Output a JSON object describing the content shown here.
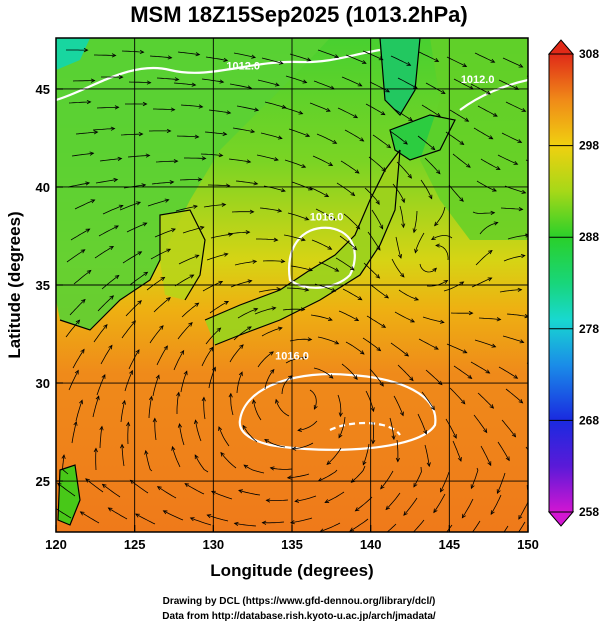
{
  "chart_data": {
    "type": "heatmap",
    "title": "MSM 18Z15Sep2025 (1013.2hPa)",
    "xlabel": "Longitude (degrees)",
    "ylabel": "Latitude  (degrees)",
    "xlim": [
      120,
      150
    ],
    "ylim": [
      22.4,
      47.6
    ],
    "x_ticks": [
      120,
      125,
      130,
      135,
      140,
      145,
      150
    ],
    "y_ticks": [
      25,
      30,
      35,
      40,
      45
    ],
    "grid": true,
    "grid_step_deg": 5,
    "colorbar": {
      "min": 258,
      "max": 308,
      "ticks": [
        258,
        268,
        278,
        288,
        298,
        308
      ],
      "placement": "right"
    },
    "contours": [
      {
        "label": "1012.0",
        "lon": 131.9,
        "lat": 46.0
      },
      {
        "label": "1016.0",
        "lon": 137.2,
        "lat": 38.3
      },
      {
        "label": "1016.0",
        "lon": 135.0,
        "lat": 31.2
      },
      {
        "label": "1012.0",
        "lon": 146.8,
        "lat": 45.3
      }
    ],
    "features": {
      "low_center": {
        "lon": 143.4,
        "lat": 35.8
      },
      "high_center": {
        "lon": 135.8,
        "lat": 29.4
      }
    }
  },
  "credits": {
    "line1": "Drawing by DCL (https://www.gfd-dennou.org/library/dcl/)",
    "line2": "Data from http://database.rish.kyoto-u.ac.jp/arch/jmadata/"
  },
  "colors": {
    "ocean_warm": "#ef7a1a",
    "land_green": "#2fcf2a",
    "mid_yellow": "#d8d810",
    "contour": "#ffffff",
    "streamline": "#000000"
  }
}
